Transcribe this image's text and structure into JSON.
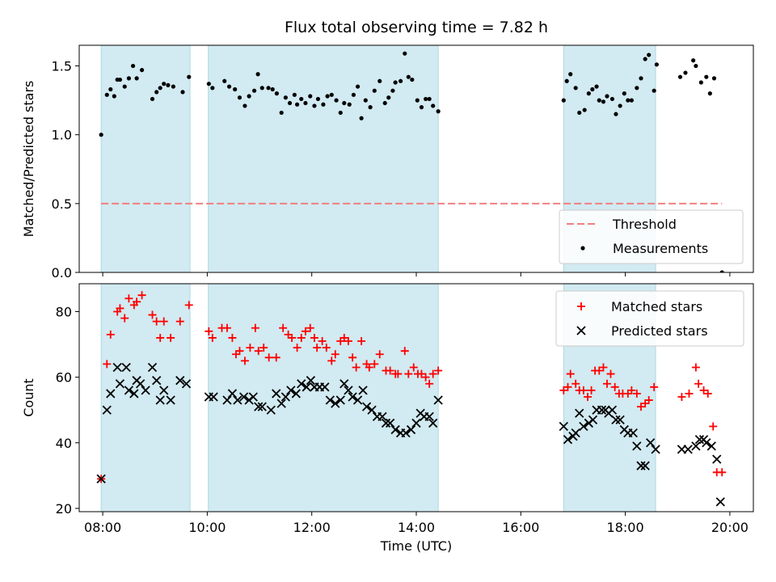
{
  "figure_title": "Flux total observing time = 7.82 h",
  "colors": {
    "shade": "#add8e6",
    "threshold": "#f08080",
    "matched": "#ff0000",
    "predicted": "#000000",
    "measurement": "#000000"
  },
  "chart_data": [
    {
      "type": "scatter",
      "title": "Flux total observing time = 7.82 h",
      "xlabel": "",
      "ylabel": "Matched/Predicted stars",
      "xlim": [
        7.55,
        20.45
      ],
      "ylim": [
        0.0,
        1.65
      ],
      "yticks": [
        0.0,
        0.5,
        1.0,
        1.5
      ],
      "ytick_labels": [
        "0.0",
        "0.5",
        "1.0",
        "1.5"
      ],
      "xticks": [
        8,
        10,
        12,
        14,
        16,
        18,
        20
      ],
      "grid": false,
      "legend_position": "lower right",
      "shaded_intervals": [
        [
          7.97,
          9.67
        ],
        [
          10.02,
          14.42
        ],
        [
          16.82,
          18.58
        ]
      ],
      "threshold": {
        "name": "Threshold",
        "value": 0.5,
        "x_range": [
          7.97,
          19.85
        ]
      },
      "series": [
        {
          "name": "Measurements",
          "marker": "dot",
          "x": [
            7.97,
            8.08,
            8.15,
            8.22,
            8.28,
            8.33,
            8.42,
            8.5,
            8.58,
            8.65,
            8.75,
            8.95,
            9.03,
            9.1,
            9.17,
            9.25,
            9.35,
            9.53,
            9.65,
            10.03,
            10.1,
            10.33,
            10.42,
            10.53,
            10.62,
            10.72,
            10.8,
            10.9,
            10.97,
            11.05,
            11.17,
            11.25,
            11.33,
            11.42,
            11.5,
            11.58,
            11.67,
            11.72,
            11.8,
            11.88,
            11.97,
            12.05,
            12.12,
            12.22,
            12.3,
            12.38,
            12.47,
            12.55,
            12.62,
            12.72,
            12.8,
            12.88,
            12.95,
            13.03,
            13.12,
            13.2,
            13.3,
            13.4,
            13.47,
            13.55,
            13.6,
            13.7,
            13.78,
            13.85,
            13.92,
            14.02,
            14.1,
            14.18,
            14.25,
            14.32,
            14.42,
            16.82,
            16.88,
            16.95,
            17.05,
            17.12,
            17.22,
            17.3,
            17.37,
            17.45,
            17.5,
            17.58,
            17.65,
            17.75,
            17.82,
            17.9,
            17.98,
            18.05,
            18.12,
            18.22,
            18.3,
            18.38,
            18.45,
            18.55,
            18.6,
            19.05,
            19.15,
            19.3,
            19.35,
            19.45,
            19.55,
            19.62,
            19.7,
            19.85
          ],
          "y": [
            1.0,
            1.29,
            1.33,
            1.28,
            1.4,
            1.4,
            1.35,
            1.41,
            1.5,
            1.41,
            1.47,
            1.26,
            1.31,
            1.34,
            1.37,
            1.36,
            1.35,
            1.31,
            1.42,
            1.37,
            1.34,
            1.39,
            1.35,
            1.33,
            1.27,
            1.21,
            1.28,
            1.32,
            1.44,
            1.34,
            1.34,
            1.33,
            1.3,
            1.16,
            1.27,
            1.23,
            1.29,
            1.22,
            1.26,
            1.23,
            1.28,
            1.21,
            1.26,
            1.22,
            1.28,
            1.29,
            1.25,
            1.16,
            1.23,
            1.22,
            1.29,
            1.35,
            1.12,
            1.25,
            1.2,
            1.32,
            1.39,
            1.23,
            1.27,
            1.32,
            1.38,
            1.39,
            1.59,
            1.42,
            1.4,
            1.25,
            1.2,
            1.26,
            1.26,
            1.21,
            1.17,
            1.25,
            1.39,
            1.44,
            1.34,
            1.16,
            1.18,
            1.3,
            1.33,
            1.35,
            1.25,
            1.24,
            1.28,
            1.26,
            1.15,
            1.21,
            1.3,
            1.25,
            1.25,
            1.34,
            1.41,
            1.55,
            1.58,
            1.32,
            1.51,
            1.42,
            1.45,
            1.54,
            1.5,
            1.38,
            1.42,
            1.3,
            1.41,
            0.0
          ]
        }
      ]
    },
    {
      "type": "scatter",
      "title": "",
      "xlabel": "Time (UTC)",
      "ylabel": "Count",
      "xlim": [
        7.55,
        20.45
      ],
      "ylim": [
        19,
        88.5
      ],
      "yticks": [
        20,
        40,
        60,
        80
      ],
      "ytick_labels": [
        "20",
        "40",
        "60",
        "80"
      ],
      "xticks": [
        8,
        10,
        12,
        14,
        16,
        18,
        20
      ],
      "xtick_labels": [
        "08:00",
        "10:00",
        "12:00",
        "14:00",
        "16:00",
        "18:00",
        "20:00"
      ],
      "grid": false,
      "legend_position": "upper right",
      "shaded_intervals": [
        [
          7.97,
          9.67
        ],
        [
          10.02,
          14.42
        ],
        [
          16.82,
          18.58
        ]
      ],
      "series": [
        {
          "name": "Matched stars",
          "marker": "plus",
          "x": [
            7.97,
            8.08,
            8.15,
            8.28,
            8.33,
            8.42,
            8.5,
            8.6,
            8.65,
            8.75,
            8.95,
            9.03,
            9.1,
            9.17,
            9.3,
            9.48,
            9.65,
            10.03,
            10.1,
            10.28,
            10.38,
            10.48,
            10.55,
            10.62,
            10.72,
            10.82,
            10.92,
            10.98,
            11.08,
            11.18,
            11.32,
            11.45,
            11.55,
            11.62,
            11.72,
            11.8,
            11.88,
            11.97,
            12.05,
            12.1,
            12.2,
            12.28,
            12.38,
            12.45,
            12.55,
            12.62,
            12.7,
            12.78,
            12.85,
            12.95,
            13.05,
            13.1,
            13.2,
            13.3,
            13.42,
            13.5,
            13.6,
            13.65,
            13.78,
            13.85,
            13.95,
            14.03,
            14.1,
            14.18,
            14.25,
            14.32,
            14.42,
            16.82,
            16.9,
            16.95,
            17.05,
            17.12,
            17.2,
            17.28,
            17.35,
            17.42,
            17.5,
            17.58,
            17.65,
            17.72,
            17.8,
            17.88,
            17.95,
            18.05,
            18.12,
            18.22,
            18.3,
            18.38,
            18.45,
            18.55,
            19.08,
            19.22,
            19.35,
            19.4,
            19.5,
            19.58,
            19.68,
            19.75,
            19.85
          ],
          "y": [
            29,
            64,
            73,
            80,
            81,
            78,
            84,
            82,
            83,
            85,
            79,
            77,
            72,
            77,
            72,
            77,
            82,
            74,
            72,
            75,
            75,
            72,
            67,
            68,
            65,
            69,
            75,
            68,
            69,
            66,
            66,
            75,
            73,
            72,
            69,
            72,
            74,
            75,
            72,
            69,
            71,
            69,
            65,
            67,
            71,
            72,
            71,
            66,
            63,
            71,
            64,
            63,
            64,
            67,
            62,
            62,
            61,
            61,
            68,
            61,
            63,
            61,
            61,
            60,
            58,
            61,
            62,
            56,
            57,
            61,
            58,
            56,
            56,
            54,
            56,
            62,
            62,
            63,
            58,
            61,
            57,
            55,
            55,
            55,
            56,
            55,
            51,
            52,
            53,
            57,
            54,
            55,
            63,
            58,
            56,
            55,
            45,
            31,
            31
          ]
        },
        {
          "name": "Predicted stars",
          "marker": "x",
          "x": [
            7.97,
            8.08,
            8.15,
            8.28,
            8.33,
            8.45,
            8.5,
            8.6,
            8.65,
            8.72,
            8.82,
            8.95,
            9.03,
            9.1,
            9.17,
            9.3,
            9.48,
            9.6,
            10.03,
            10.12,
            10.38,
            10.48,
            10.58,
            10.7,
            10.8,
            10.88,
            10.98,
            11.05,
            11.22,
            11.32,
            11.42,
            11.5,
            11.6,
            11.7,
            11.8,
            11.9,
            11.98,
            12.05,
            12.15,
            12.25,
            12.35,
            12.45,
            12.55,
            12.62,
            12.7,
            12.78,
            12.88,
            12.98,
            13.05,
            13.15,
            13.25,
            13.35,
            13.42,
            13.5,
            13.6,
            13.7,
            13.8,
            13.9,
            14.0,
            14.08,
            14.15,
            14.25,
            14.32,
            14.42,
            16.82,
            16.9,
            17.0,
            17.05,
            17.12,
            17.2,
            17.3,
            17.38,
            17.45,
            17.55,
            17.62,
            17.68,
            17.75,
            17.82,
            17.9,
            17.98,
            18.05,
            18.15,
            18.22,
            18.3,
            18.38,
            18.48,
            18.58,
            19.08,
            19.2,
            19.35,
            19.42,
            19.5,
            19.55,
            19.65,
            19.75,
            19.82
          ],
          "y": [
            29,
            50,
            55,
            63,
            58,
            63,
            56,
            55,
            59,
            58,
            56,
            63,
            59,
            53,
            56,
            53,
            59,
            58,
            54,
            54,
            53,
            55,
            53,
            54,
            53,
            54,
            51,
            51,
            50,
            55,
            52,
            54,
            56,
            55,
            58,
            57,
            59,
            57,
            57,
            57,
            53,
            52,
            53,
            58,
            56,
            54,
            53,
            56,
            51,
            50,
            48,
            48,
            46,
            46,
            44,
            43,
            43,
            44,
            46,
            49,
            48,
            48,
            46,
            53,
            45,
            41,
            42,
            43,
            49,
            45,
            46,
            47,
            50,
            50,
            50,
            49,
            50,
            47,
            47,
            44,
            43,
            43,
            39,
            33,
            33,
            40,
            38,
            38,
            38,
            39,
            41,
            41,
            40,
            39,
            35,
            22
          ]
        }
      ]
    }
  ]
}
